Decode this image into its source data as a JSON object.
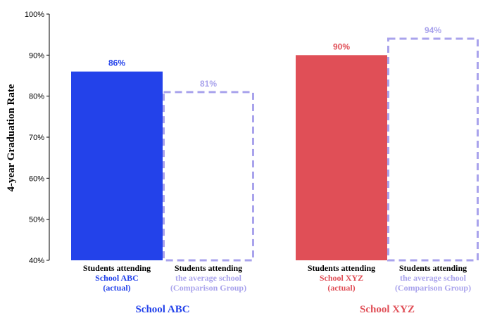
{
  "colors": {
    "abc_actual": "#2342ea",
    "xyz_actual": "#e04f57",
    "comparison": "#a9a3ec",
    "axis": "#000000"
  },
  "chart_data": {
    "type": "bar",
    "ylabel": "4-year Graduation Rate",
    "ylim": [
      40,
      100
    ],
    "yticks": [
      40,
      50,
      60,
      70,
      80,
      90,
      100
    ],
    "ytick_labels": [
      "40%",
      "50%",
      "60%",
      "70%",
      "80%",
      "90%",
      "100%"
    ],
    "grid": false,
    "legend": "none",
    "groups": [
      {
        "name": "School ABC",
        "color": "#2342ea",
        "bars": [
          {
            "style": "solid",
            "value": 86,
            "value_label": "86%",
            "label_lines": [
              "Students attending",
              "School ABC",
              "(actual)"
            ]
          },
          {
            "style": "dashed",
            "value": 81,
            "value_label": "81%",
            "label_lines": [
              "Students attending",
              "the average school",
              "(Comparison Group)"
            ]
          }
        ]
      },
      {
        "name": "School XYZ",
        "color": "#e04f57",
        "bars": [
          {
            "style": "solid",
            "value": 90,
            "value_label": "90%",
            "label_lines": [
              "Students attending",
              "School XYZ",
              "(actual)"
            ]
          },
          {
            "style": "dashed",
            "value": 94,
            "value_label": "94%",
            "label_lines": [
              "Students attending",
              "the average school",
              "(Comparison Group)"
            ]
          }
        ]
      }
    ]
  }
}
